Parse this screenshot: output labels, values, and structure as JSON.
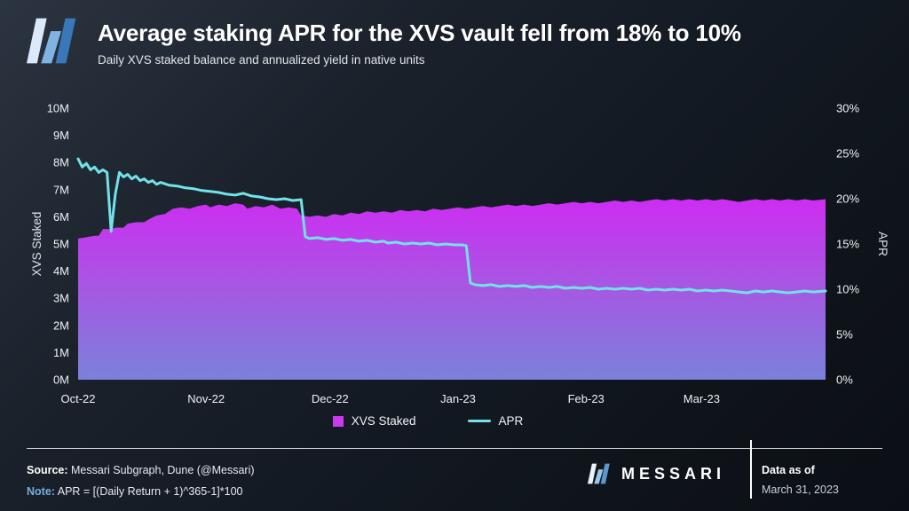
{
  "header": {
    "title": "Average staking APR for the XVS vault fell from 18% to 10%",
    "subtitle": "Daily XVS staked balance and annualized yield in native units"
  },
  "chart_data": {
    "type": "area",
    "title": "Average staking APR for the XVS vault fell from 18% to 10%",
    "subtitle": "Daily XVS staked balance and annualized yield in native units",
    "left_axis": {
      "label": "XVS Staked",
      "min": 0,
      "max": 10,
      "ticks": [
        "0M",
        "1M",
        "2M",
        "3M",
        "4M",
        "5M",
        "6M",
        "7M",
        "8M",
        "9M",
        "10M"
      ]
    },
    "right_axis": {
      "label": "APR",
      "min": 0,
      "max": 30,
      "ticks": [
        "0%",
        "5%",
        "10%",
        "15%",
        "20%",
        "25%",
        "30%"
      ]
    },
    "x_axis": {
      "min_day": 0,
      "max_day": 181,
      "ticks": [
        {
          "label": "Oct-22",
          "day": 0
        },
        {
          "label": "Nov-22",
          "day": 31
        },
        {
          "label": "Dec-22",
          "day": 61
        },
        {
          "label": "Jan-23",
          "day": 92
        },
        {
          "label": "Feb-23",
          "day": 123
        },
        {
          "label": "Mar-23",
          "day": 151
        }
      ]
    },
    "series": [
      {
        "name": "XVS Staked",
        "type": "area",
        "axis": "left",
        "unit": "M XVS",
        "color_top": "#cd2df2",
        "color_mid": "#aa54e4",
        "color_bottom": "#7b81da",
        "points": [
          [
            0,
            5.2
          ],
          [
            2,
            5.25
          ],
          [
            4,
            5.3
          ],
          [
            5,
            5.3
          ],
          [
            6,
            5.55
          ],
          [
            8,
            5.55
          ],
          [
            9,
            5.6
          ],
          [
            11,
            5.6
          ],
          [
            12,
            5.75
          ],
          [
            14,
            5.8
          ],
          [
            16,
            5.8
          ],
          [
            17,
            5.9
          ],
          [
            19,
            6.05
          ],
          [
            21,
            6.1
          ],
          [
            23,
            6.3
          ],
          [
            25,
            6.35
          ],
          [
            27,
            6.3
          ],
          [
            29,
            6.4
          ],
          [
            31,
            6.45
          ],
          [
            32,
            6.35
          ],
          [
            34,
            6.45
          ],
          [
            36,
            6.4
          ],
          [
            38,
            6.5
          ],
          [
            40,
            6.45
          ],
          [
            41,
            6.3
          ],
          [
            43,
            6.4
          ],
          [
            45,
            6.35
          ],
          [
            47,
            6.45
          ],
          [
            49,
            6.3
          ],
          [
            51,
            6.35
          ],
          [
            53,
            6.3
          ],
          [
            54,
            6.05
          ],
          [
            56,
            6.0
          ],
          [
            58,
            6.05
          ],
          [
            60,
            6.0
          ],
          [
            62,
            6.1
          ],
          [
            64,
            6.05
          ],
          [
            66,
            6.15
          ],
          [
            68,
            6.1
          ],
          [
            70,
            6.2
          ],
          [
            72,
            6.15
          ],
          [
            74,
            6.2
          ],
          [
            76,
            6.15
          ],
          [
            78,
            6.25
          ],
          [
            80,
            6.2
          ],
          [
            82,
            6.25
          ],
          [
            84,
            6.2
          ],
          [
            86,
            6.3
          ],
          [
            88,
            6.25
          ],
          [
            90,
            6.3
          ],
          [
            92,
            6.35
          ],
          [
            94,
            6.3
          ],
          [
            96,
            6.35
          ],
          [
            98,
            6.4
          ],
          [
            100,
            6.35
          ],
          [
            102,
            6.4
          ],
          [
            104,
            6.45
          ],
          [
            106,
            6.4
          ],
          [
            108,
            6.45
          ],
          [
            110,
            6.4
          ],
          [
            112,
            6.45
          ],
          [
            114,
            6.5
          ],
          [
            116,
            6.45
          ],
          [
            118,
            6.5
          ],
          [
            120,
            6.55
          ],
          [
            122,
            6.5
          ],
          [
            124,
            6.55
          ],
          [
            126,
            6.5
          ],
          [
            128,
            6.55
          ],
          [
            130,
            6.6
          ],
          [
            132,
            6.55
          ],
          [
            134,
            6.6
          ],
          [
            136,
            6.55
          ],
          [
            138,
            6.6
          ],
          [
            140,
            6.65
          ],
          [
            142,
            6.6
          ],
          [
            144,
            6.65
          ],
          [
            146,
            6.6
          ],
          [
            148,
            6.65
          ],
          [
            150,
            6.6
          ],
          [
            152,
            6.65
          ],
          [
            154,
            6.6
          ],
          [
            156,
            6.65
          ],
          [
            158,
            6.6
          ],
          [
            160,
            6.55
          ],
          [
            162,
            6.6
          ],
          [
            164,
            6.65
          ],
          [
            166,
            6.6
          ],
          [
            168,
            6.65
          ],
          [
            170,
            6.6
          ],
          [
            172,
            6.65
          ],
          [
            174,
            6.6
          ],
          [
            176,
            6.65
          ],
          [
            178,
            6.6
          ],
          [
            181,
            6.65
          ]
        ]
      },
      {
        "name": "APR",
        "type": "line",
        "axis": "right",
        "unit": "%",
        "color": "#72e2e8",
        "points": [
          [
            0,
            24.4
          ],
          [
            1,
            23.5
          ],
          [
            2,
            23.9
          ],
          [
            3,
            23.2
          ],
          [
            4,
            23.5
          ],
          [
            5,
            22.9
          ],
          [
            6,
            23.2
          ],
          [
            7,
            22.9
          ],
          [
            8,
            16.4
          ],
          [
            9,
            20.5
          ],
          [
            10,
            22.9
          ],
          [
            11,
            22.4
          ],
          [
            12,
            22.7
          ],
          [
            13,
            22.2
          ],
          [
            14,
            22.5
          ],
          [
            15,
            22.0
          ],
          [
            16,
            22.2
          ],
          [
            17,
            21.8
          ],
          [
            18,
            22.0
          ],
          [
            19,
            21.6
          ],
          [
            20,
            21.8
          ],
          [
            22,
            21.5
          ],
          [
            24,
            21.4
          ],
          [
            26,
            21.2
          ],
          [
            28,
            21.1
          ],
          [
            30,
            20.9
          ],
          [
            32,
            20.8
          ],
          [
            34,
            20.7
          ],
          [
            36,
            20.5
          ],
          [
            38,
            20.4
          ],
          [
            40,
            20.6
          ],
          [
            42,
            20.3
          ],
          [
            44,
            20.2
          ],
          [
            46,
            20.0
          ],
          [
            48,
            19.9
          ],
          [
            50,
            20.0
          ],
          [
            52,
            19.8
          ],
          [
            54,
            19.9
          ],
          [
            55,
            15.8
          ],
          [
            56,
            15.6
          ],
          [
            58,
            15.7
          ],
          [
            60,
            15.5
          ],
          [
            62,
            15.6
          ],
          [
            64,
            15.4
          ],
          [
            66,
            15.5
          ],
          [
            68,
            15.3
          ],
          [
            70,
            15.4
          ],
          [
            72,
            15.2
          ],
          [
            74,
            15.3
          ],
          [
            75,
            15.1
          ],
          [
            77,
            15.2
          ],
          [
            79,
            15.0
          ],
          [
            81,
            15.1
          ],
          [
            83,
            15.0
          ],
          [
            85,
            15.1
          ],
          [
            87,
            14.9
          ],
          [
            89,
            15.0
          ],
          [
            91,
            14.9
          ],
          [
            93,
            14.9
          ],
          [
            94,
            14.8
          ],
          [
            95,
            10.7
          ],
          [
            96,
            10.5
          ],
          [
            98,
            10.4
          ],
          [
            100,
            10.5
          ],
          [
            102,
            10.3
          ],
          [
            104,
            10.4
          ],
          [
            106,
            10.3
          ],
          [
            108,
            10.4
          ],
          [
            110,
            10.2
          ],
          [
            112,
            10.3
          ],
          [
            114,
            10.2
          ],
          [
            116,
            10.3
          ],
          [
            118,
            10.1
          ],
          [
            120,
            10.2
          ],
          [
            122,
            10.1
          ],
          [
            124,
            10.2
          ],
          [
            126,
            10.0
          ],
          [
            128,
            10.1
          ],
          [
            130,
            10.0
          ],
          [
            132,
            10.1
          ],
          [
            134,
            10.0
          ],
          [
            136,
            10.1
          ],
          [
            138,
            9.9
          ],
          [
            140,
            10.0
          ],
          [
            142,
            9.9
          ],
          [
            144,
            10.0
          ],
          [
            146,
            9.9
          ],
          [
            148,
            10.0
          ],
          [
            150,
            9.8
          ],
          [
            152,
            9.9
          ],
          [
            154,
            9.8
          ],
          [
            156,
            9.9
          ],
          [
            158,
            9.8
          ],
          [
            160,
            9.7
          ],
          [
            162,
            9.6
          ],
          [
            164,
            9.8
          ],
          [
            166,
            9.7
          ],
          [
            168,
            9.8
          ],
          [
            170,
            9.7
          ],
          [
            172,
            9.6
          ],
          [
            174,
            9.7
          ],
          [
            176,
            9.8
          ],
          [
            178,
            9.7
          ],
          [
            181,
            9.8
          ]
        ]
      }
    ]
  },
  "legend": {
    "items": [
      {
        "label": "XVS Staked",
        "swatch": "square",
        "color": "#c93bec"
      },
      {
        "label": "APR",
        "swatch": "line",
        "color": "#72e2e8"
      }
    ]
  },
  "footer": {
    "source_label": "Source:",
    "source_text": " Messari Subgraph, Dune (@Messari)",
    "note_label": "Note:",
    "note_text": " APR = [(Daily Return + 1)^365-1]*100",
    "brand": "MESSARI",
    "data_as_of_label": "Data as of",
    "data_as_of_date": "March 31, 2023"
  },
  "colors": {
    "background_dark": "#0e1319",
    "area_top": "#cd2df2",
    "area_bottom": "#7b81da",
    "apr_line": "#72e2e8",
    "logo_light": "#dbeafa",
    "logo_mid": "#7fb4e2",
    "logo_dark": "#3a77b8"
  }
}
